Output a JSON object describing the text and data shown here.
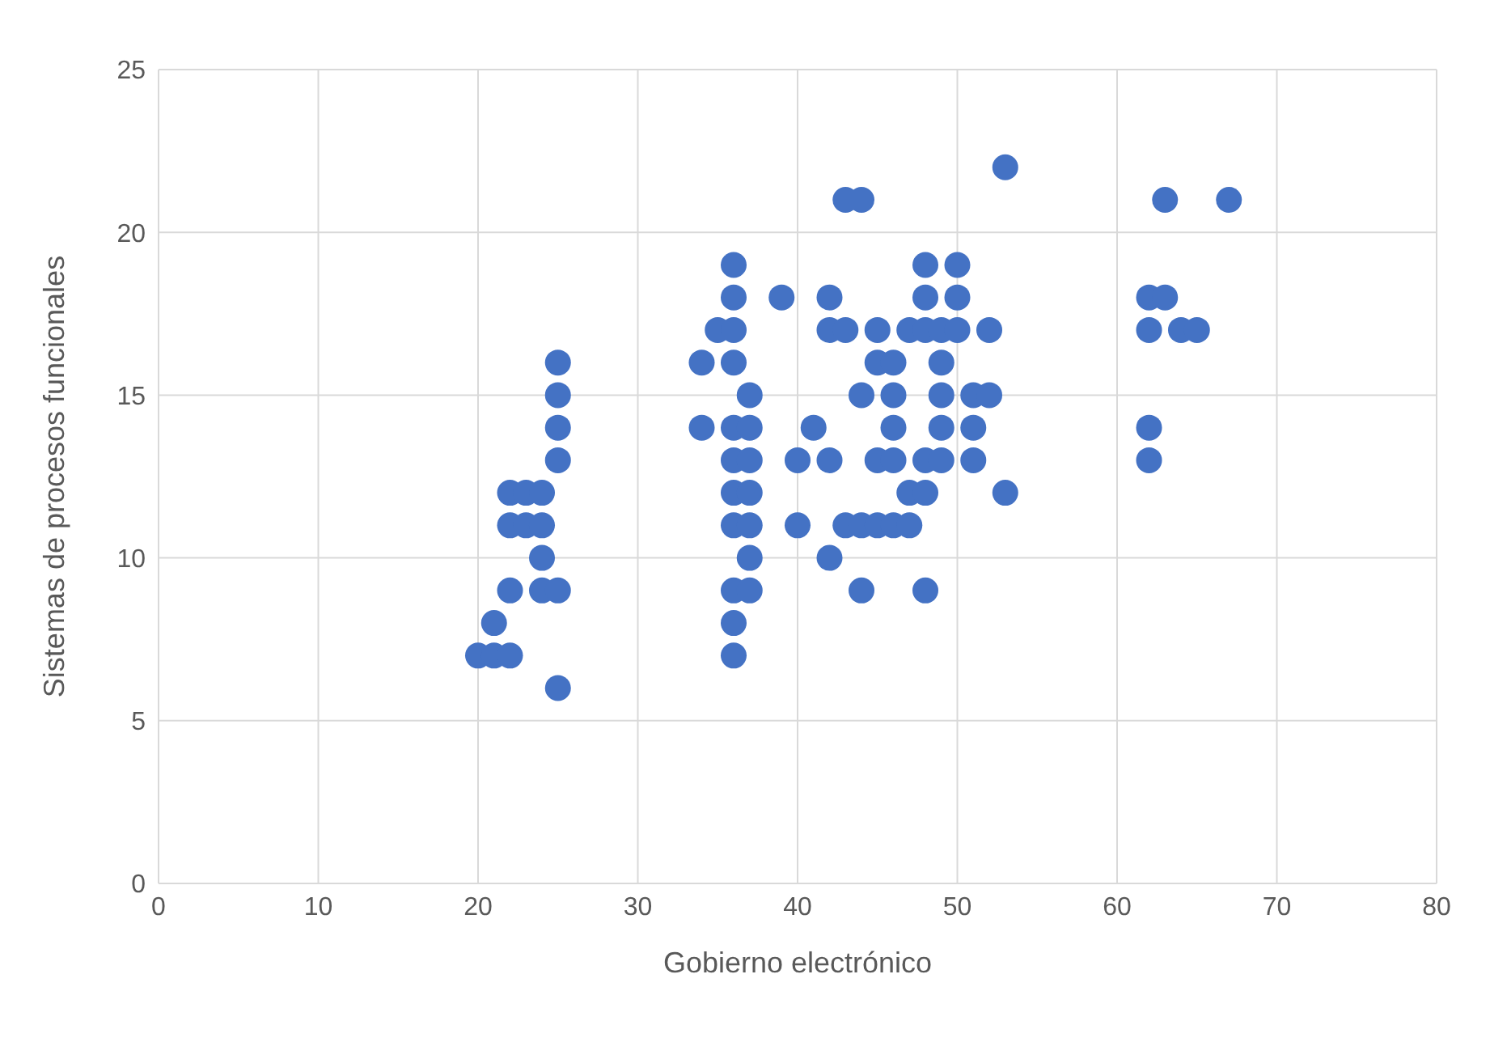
{
  "chart_data": {
    "type": "scatter",
    "xlabel": "Gobierno electrónico",
    "ylabel": "Sistemas de procesos funcionales",
    "xlim": [
      0,
      80
    ],
    "xticks": [
      0,
      10,
      20,
      30,
      40,
      50,
      60,
      70,
      80
    ],
    "ylim": [
      0,
      25
    ],
    "yticks": [
      0,
      5,
      10,
      15,
      20,
      25
    ],
    "grid": true,
    "marker": "circle",
    "series": [
      {
        "color": "#4472c4",
        "x": [
          20,
          21,
          22,
          21,
          22,
          24,
          25,
          24,
          22,
          23,
          24,
          22,
          23,
          24,
          25,
          25,
          25,
          25,
          25,
          34,
          34,
          35,
          36,
          36,
          36,
          36,
          36,
          37,
          36,
          37,
          36,
          37,
          36,
          37,
          36,
          37,
          36,
          36,
          37,
          37,
          39,
          40,
          40,
          41,
          42,
          42,
          43,
          42,
          42,
          43,
          44,
          43,
          44,
          45,
          46,
          47,
          44,
          44,
          45,
          45,
          46,
          45,
          46,
          46,
          46,
          47,
          48,
          49,
          50,
          48,
          50,
          48,
          50,
          47,
          48,
          48,
          49,
          48,
          49,
          49,
          49,
          51,
          52,
          51,
          51,
          52,
          53,
          53,
          62,
          63,
          62,
          64,
          65,
          62,
          62,
          63,
          67
        ],
        "values": [
          7,
          7,
          7,
          8,
          9,
          9,
          9,
          10,
          11,
          11,
          11,
          12,
          12,
          12,
          13,
          14,
          15,
          16,
          6,
          16,
          14,
          17,
          17,
          19,
          18,
          16,
          14,
          14,
          13,
          13,
          12,
          12,
          11,
          11,
          9,
          9,
          8,
          7,
          15,
          10,
          18,
          13,
          11,
          14,
          18,
          17,
          17,
          13,
          10,
          21,
          21,
          11,
          11,
          11,
          11,
          11,
          15,
          9,
          17,
          16,
          16,
          13,
          13,
          15,
          14,
          17,
          17,
          17,
          17,
          19,
          19,
          18,
          18,
          12,
          12,
          13,
          13,
          9,
          16,
          15,
          14,
          15,
          15,
          14,
          13,
          17,
          12,
          22,
          18,
          18,
          17,
          17,
          17,
          14,
          13,
          21,
          21
        ]
      }
    ]
  }
}
